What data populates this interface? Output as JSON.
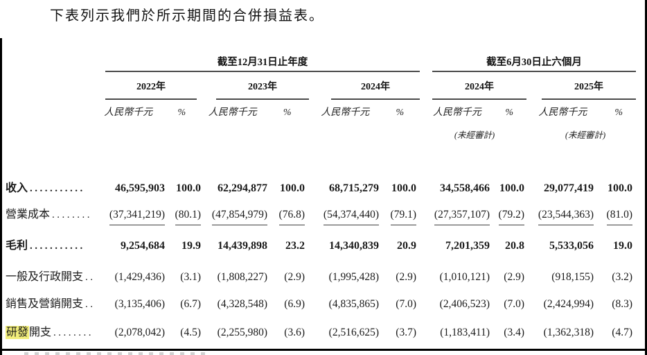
{
  "title": "下表列示我們於所示期間的合併損益表。",
  "highlight_color": "#f2ee7b",
  "table": {
    "period_groups": [
      {
        "label": "截至12月31日止年度"
      },
      {
        "label": "截至6月30日止六個月"
      }
    ],
    "col_years": [
      "2022年",
      "2023年",
      "2024年",
      "2024年",
      "2025年"
    ],
    "unit_header": "人民幣千元",
    "pct_header": "%",
    "unaudited_note": "(未經審計)",
    "rows": [
      {
        "label_hl": "",
        "label": "收入",
        "leader": "...........",
        "values": [
          "46,595,903",
          "100.0",
          "62,294,877",
          "100.0",
          "68,715,279",
          "100.0",
          "34,558,466",
          "100.0",
          "29,077,419",
          "100.0"
        ]
      },
      {
        "label_hl": "",
        "label": "營業成本",
        "leader": "........",
        "values": [
          "(37,341,219)",
          "(80.1)",
          "(47,854,979)",
          "(76.8)",
          "(54,374,440)",
          "(79.1)",
          "(27,357,107)",
          "(79.2)",
          "(23,544,363)",
          "(81.0)"
        ]
      },
      {
        "label_hl": "",
        "label": "毛利",
        "leader": "...........",
        "values": [
          "9,254,684",
          "19.9",
          "14,439,898",
          "23.2",
          "14,340,839",
          "20.9",
          "7,201,359",
          "20.8",
          "5,533,056",
          "19.0"
        ]
      },
      {
        "label_hl": "",
        "label": "一般及行政開支",
        "leader": "..",
        "values": [
          "(1,429,436)",
          "(3.1)",
          "(1,808,227)",
          "(2.9)",
          "(1,995,428)",
          "(2.9)",
          "(1,010,121)",
          "(2.9)",
          "(918,155)",
          "(3.2)"
        ]
      },
      {
        "label_hl": "",
        "label": "銷售及營銷開支",
        "leader": "..",
        "values": [
          "(3,135,406)",
          "(6.7)",
          "(4,328,548)",
          "(6.9)",
          "(4,835,865)",
          "(7.0)",
          "(2,406,523)",
          "(7.0)",
          "(2,424,994)",
          "(8.3)"
        ]
      },
      {
        "label_hl": "研發",
        "label": "開支",
        "leader": "........",
        "values": [
          "(2,078,042)",
          "(4.5)",
          "(2,255,980)",
          "(3.6)",
          "(2,516,625)",
          "(3.7)",
          "(1,183,411)",
          "(3.4)",
          "(1,362,318)",
          "(4.7)"
        ]
      }
    ]
  }
}
